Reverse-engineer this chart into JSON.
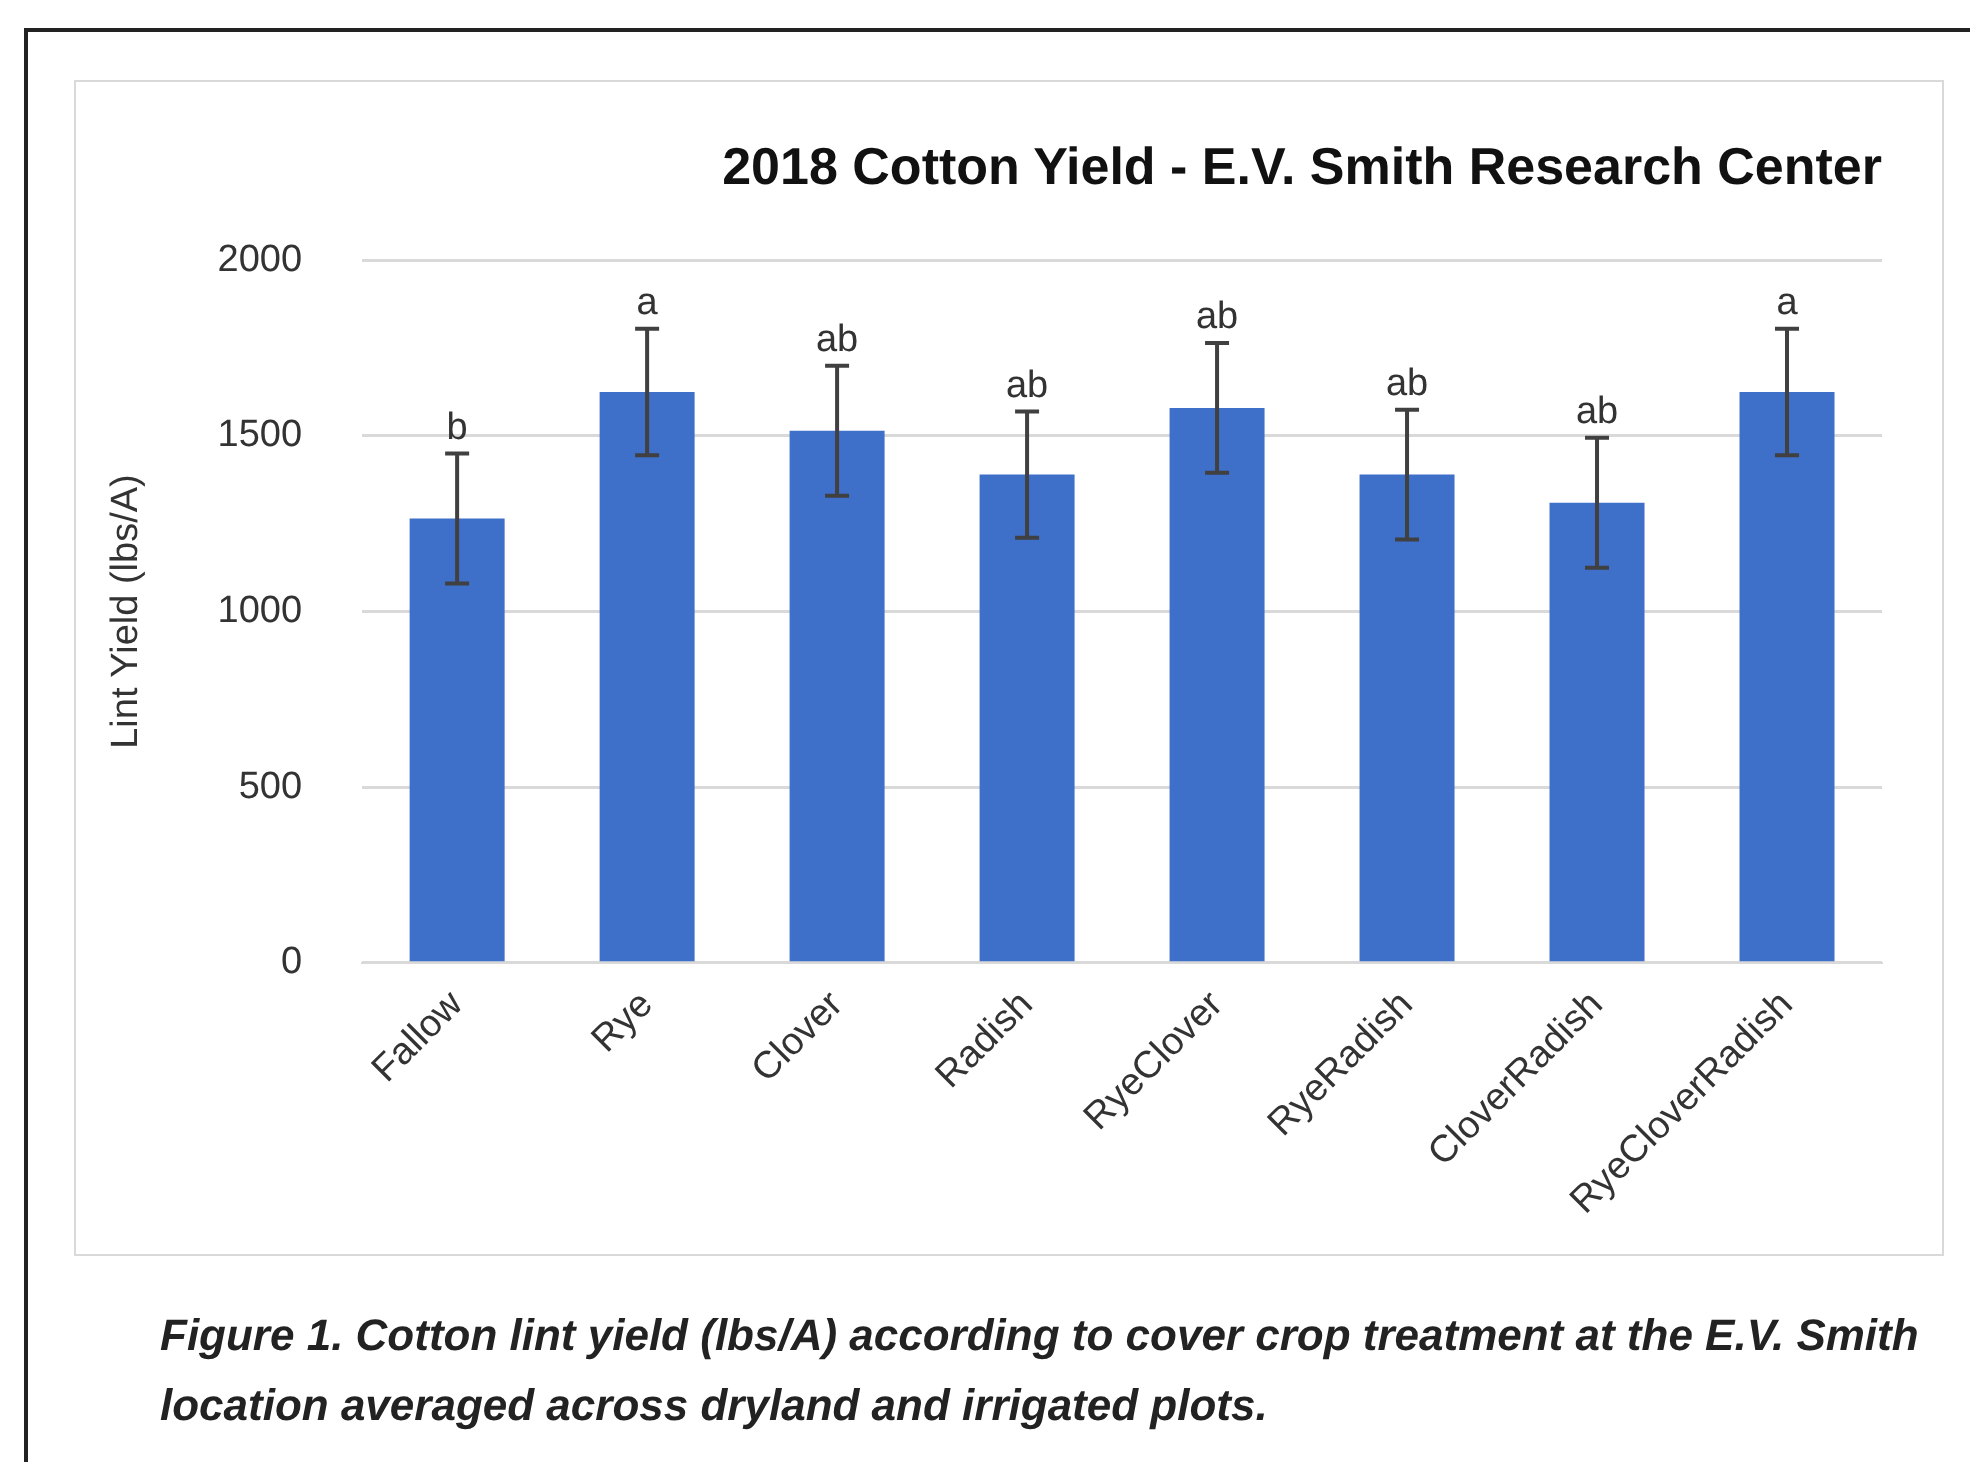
{
  "chart_data": {
    "type": "bar",
    "title": "2018 Cotton Yield - E.V. Smith Research Center",
    "ylabel": "Lint Yield (lbs/A)",
    "categories": [
      "Fallow",
      "Rye",
      "Clover",
      "Radish",
      "RyeClover",
      "RyeRadish",
      "CloverRadish",
      "RyeCloverRadish"
    ],
    "values": [
      1265,
      1625,
      1515,
      1390,
      1580,
      1390,
      1310,
      1625
    ],
    "errors": [
      185,
      180,
      185,
      180,
      185,
      185,
      185,
      180
    ],
    "color": "#3e6fc9",
    "ylim": [
      0,
      2000
    ],
    "yticks": [
      0,
      500,
      1000,
      1500,
      2000
    ],
    "grid": "y",
    "legend": false,
    "annotations": [
      {
        "text": "b",
        "x": "Fallow",
        "y": 1450
      },
      {
        "text": "a",
        "x": "Rye",
        "y": 1805
      },
      {
        "text": "ab",
        "x": "Clover",
        "y": 1700
      },
      {
        "text": "ab",
        "x": "Radish",
        "y": 1570
      },
      {
        "text": "ab",
        "x": "RyeClover",
        "y": 1765
      },
      {
        "text": "ab",
        "x": "RyeRadish",
        "y": 1575
      },
      {
        "text": "ab",
        "x": "CloverRadish",
        "y": 1495
      },
      {
        "text": "a",
        "x": "RyeCloverRadish",
        "y": 1805
      },
      "Figure 1. Cotton lint yield (lbs/A) according to cover crop treatment at the E.V. Smith location averaged across dryland and irrigated plots."
    ]
  }
}
